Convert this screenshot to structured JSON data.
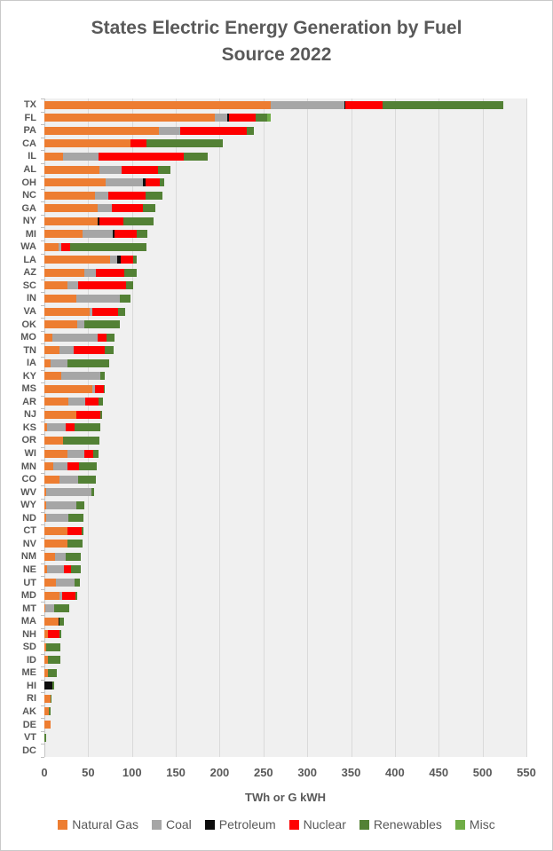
{
  "title_lines": [
    "States Electric Energy  Generation by Fuel",
    "Source 2022"
  ],
  "colors": {
    "title_text": "#595959",
    "axis_text": "#595959",
    "plot_background": "#f0f0f0",
    "gridline": "#dadada"
  },
  "chart_data": {
    "type": "bar",
    "orientation": "horizontal",
    "stacked": true,
    "title": "States Electric Energy  Generation by Fuel Source 2022",
    "xlabel": "TWh or G kWH",
    "xlim": [
      0,
      550
    ],
    "xticks": [
      0,
      50,
      100,
      150,
      200,
      250,
      300,
      350,
      400,
      450,
      500,
      550
    ],
    "grid": true,
    "legend_position": "bottom",
    "series": [
      {
        "name": "Natural Gas",
        "color": "#ED7D31"
      },
      {
        "name": "Coal",
        "color": "#A6A6A6"
      },
      {
        "name": "Petroleum",
        "color": "#0D0D0D"
      },
      {
        "name": "Nuclear",
        "color": "#FE0000"
      },
      {
        "name": "Renewables",
        "color": "#538135"
      },
      {
        "name": "Misc",
        "color": "#70AD47"
      }
    ],
    "categories": [
      "TX",
      "FL",
      "PA",
      "CA",
      "IL",
      "AL",
      "OH",
      "NC",
      "GA",
      "NY",
      "MI",
      "WA",
      "LA",
      "AZ",
      "SC",
      "IN",
      "VA",
      "OK",
      "MO",
      "TN",
      "IA",
      "KY",
      "MS",
      "AR",
      "NJ",
      "KS",
      "OR",
      "WI",
      "MN",
      "CO",
      "WV",
      "WY",
      "ND",
      "CT",
      "NV",
      "NM",
      "NE",
      "UT",
      "MD",
      "MT",
      "MA",
      "NH",
      "SD",
      "ID",
      "ME",
      "HI",
      "RI",
      "AK",
      "DE",
      "VT",
      "DC"
    ],
    "values": {
      "TX": [
        258,
        84,
        1,
        43,
        138,
        0
      ],
      "FL": [
        194,
        15,
        2,
        30,
        13,
        4
      ],
      "PA": [
        131,
        24,
        0,
        76,
        8,
        0
      ],
      "CA": [
        98,
        0,
        0,
        18,
        88,
        0
      ],
      "IL": [
        21,
        41,
        0,
        97,
        27,
        0
      ],
      "AL": [
        63,
        25,
        0,
        42,
        14,
        0
      ],
      "OH": [
        70,
        42,
        3,
        17,
        5,
        0
      ],
      "NC": [
        58,
        15,
        0,
        43,
        19,
        0
      ],
      "GA": [
        61,
        16,
        0,
        35,
        15,
        0
      ],
      "NY": [
        61,
        0,
        2,
        27,
        35,
        0
      ],
      "MI": [
        44,
        34,
        2,
        25,
        13,
        0
      ],
      "WA": [
        16,
        3,
        0,
        10,
        88,
        0
      ],
      "LA": [
        75,
        8,
        4,
        14,
        4,
        0
      ],
      "AZ": [
        46,
        13,
        0,
        32,
        14,
        0
      ],
      "SC": [
        26,
        13,
        0,
        54,
        8,
        0
      ],
      "IN": [
        36,
        50,
        0,
        0,
        12,
        0
      ],
      "VA": [
        52,
        3,
        0,
        29,
        8,
        0
      ],
      "OK": [
        37,
        9,
        0,
        0,
        40,
        0
      ],
      "MO": [
        9,
        52,
        0,
        10,
        9,
        0
      ],
      "TN": [
        17,
        16,
        0,
        36,
        10,
        0
      ],
      "IA": [
        7,
        19,
        0,
        0,
        48,
        0
      ],
      "KY": [
        19,
        45,
        0,
        0,
        5,
        0
      ],
      "MS": [
        55,
        3,
        0,
        10,
        1,
        0
      ],
      "AR": [
        27,
        20,
        0,
        15,
        5,
        0
      ],
      "NJ": [
        36,
        0,
        0,
        28,
        2,
        0
      ],
      "KS": [
        3,
        21,
        0,
        10,
        30,
        0
      ],
      "OR": [
        21,
        0,
        0,
        0,
        42,
        0
      ],
      "WI": [
        26,
        20,
        0,
        10,
        6,
        0
      ],
      "MN": [
        10,
        16,
        0,
        14,
        20,
        0
      ],
      "CO": [
        17,
        21,
        0,
        0,
        21,
        0
      ],
      "WV": [
        2,
        52,
        0,
        0,
        3,
        0
      ],
      "WY": [
        2,
        34,
        0,
        0,
        10,
        0
      ],
      "ND": [
        2,
        25,
        0,
        0,
        18,
        0
      ],
      "CT": [
        26,
        0,
        0,
        17,
        2,
        0
      ],
      "NV": [
        26,
        0,
        0,
        0,
        18,
        0
      ],
      "NM": [
        12,
        12,
        0,
        0,
        18,
        0
      ],
      "NE": [
        3,
        19,
        0,
        8,
        12,
        0
      ],
      "UT": [
        13,
        21,
        0,
        0,
        7,
        0
      ],
      "MD": [
        17,
        3,
        0,
        15,
        3,
        0
      ],
      "MT": [
        1,
        10,
        0,
        0,
        17,
        0
      ],
      "MA": [
        16,
        0,
        1,
        0,
        5,
        0
      ],
      "NH": [
        4,
        0,
        0,
        13,
        2,
        0
      ],
      "SD": [
        2,
        0,
        0,
        0,
        16,
        0
      ],
      "ID": [
        4,
        0,
        0,
        0,
        14,
        0
      ],
      "ME": [
        4,
        0,
        0,
        0,
        10,
        0
      ],
      "HI": [
        0,
        0,
        9,
        0,
        2,
        0
      ],
      "RI": [
        7,
        0,
        0,
        0,
        1,
        0
      ],
      "AK": [
        5,
        0,
        0,
        0,
        2,
        0
      ],
      "DE": [
        7,
        0,
        0,
        0,
        0,
        0
      ],
      "VT": [
        0,
        0,
        0,
        0,
        2,
        0
      ],
      "DC": [
        0,
        0,
        0,
        0,
        0,
        0
      ]
    }
  }
}
